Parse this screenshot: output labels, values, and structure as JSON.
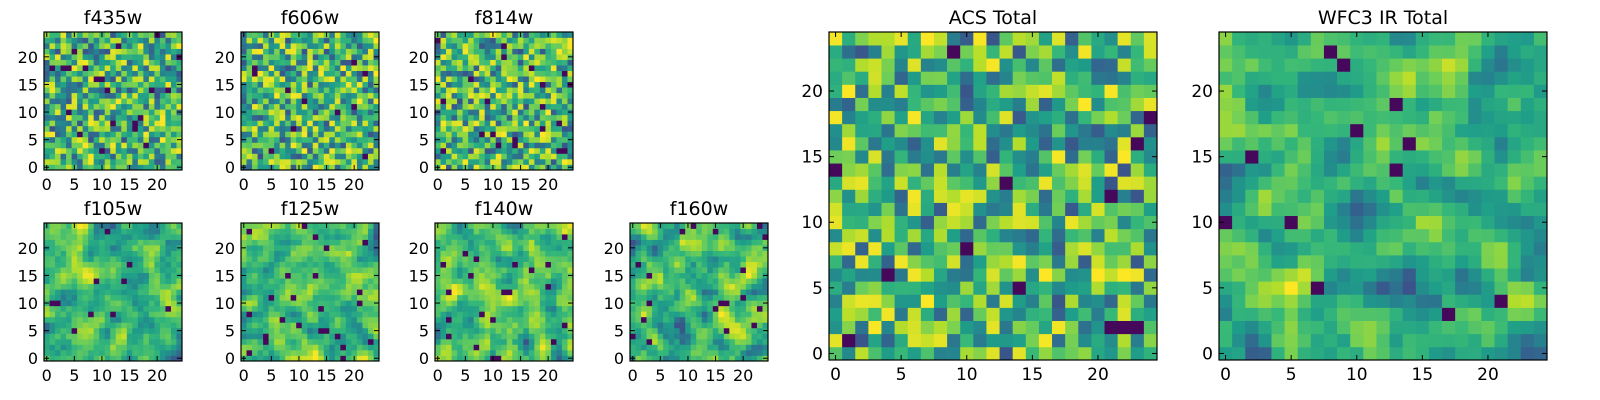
{
  "chart_data": [
    {
      "type": "heatmap",
      "title": "f435w",
      "grid": [
        25,
        25
      ],
      "xlim": [
        0,
        24
      ],
      "ylim": [
        0,
        24
      ],
      "xticks": [
        "0",
        "5",
        "10",
        "15",
        "20"
      ],
      "yticks": [
        "0",
        "5",
        "10",
        "15",
        "20"
      ],
      "seed": 11,
      "noise": "uncorrelated",
      "colormap": "viridis"
    },
    {
      "type": "heatmap",
      "title": "f606w",
      "grid": [
        25,
        25
      ],
      "xlim": [
        0,
        24
      ],
      "ylim": [
        0,
        24
      ],
      "xticks": [
        "0",
        "5",
        "10",
        "15",
        "20"
      ],
      "yticks": [
        "0",
        "5",
        "10",
        "15",
        "20"
      ],
      "seed": 23,
      "noise": "uncorrelated",
      "colormap": "viridis"
    },
    {
      "type": "heatmap",
      "title": "f814w",
      "grid": [
        25,
        25
      ],
      "xlim": [
        0,
        24
      ],
      "ylim": [
        0,
        24
      ],
      "xticks": [
        "0",
        "5",
        "10",
        "15",
        "20"
      ],
      "yticks": [
        "0",
        "5",
        "10",
        "15",
        "20"
      ],
      "seed": 37,
      "noise": "uncorrelated",
      "colormap": "viridis"
    },
    {
      "type": "heatmap",
      "title": "f105w",
      "grid": [
        25,
        25
      ],
      "xlim": [
        0,
        24
      ],
      "ylim": [
        0,
        24
      ],
      "xticks": [
        "0",
        "5",
        "10",
        "15",
        "20"
      ],
      "yticks": [
        "0",
        "5",
        "10",
        "15",
        "20"
      ],
      "seed": 41,
      "noise": "correlated",
      "colormap": "viridis"
    },
    {
      "type": "heatmap",
      "title": "f125w",
      "grid": [
        25,
        25
      ],
      "xlim": [
        0,
        24
      ],
      "ylim": [
        0,
        24
      ],
      "xticks": [
        "0",
        "5",
        "10",
        "15",
        "20"
      ],
      "yticks": [
        "0",
        "5",
        "10",
        "15",
        "20"
      ],
      "seed": 53,
      "noise": "correlated",
      "colormap": "viridis"
    },
    {
      "type": "heatmap",
      "title": "f140w",
      "grid": [
        25,
        25
      ],
      "xlim": [
        0,
        24
      ],
      "ylim": [
        0,
        24
      ],
      "xticks": [
        "0",
        "5",
        "10",
        "15",
        "20"
      ],
      "yticks": [
        "0",
        "5",
        "10",
        "15",
        "20"
      ],
      "seed": 67,
      "noise": "correlated",
      "colormap": "viridis"
    },
    {
      "type": "heatmap",
      "title": "f160w",
      "grid": [
        25,
        25
      ],
      "xlim": [
        0,
        24
      ],
      "ylim": [
        0,
        24
      ],
      "xticks": [
        "0",
        "5",
        "10",
        "15",
        "20"
      ],
      "yticks": [
        "0",
        "5",
        "10",
        "15",
        "20"
      ],
      "seed": 79,
      "noise": "correlated",
      "colormap": "viridis"
    },
    {
      "type": "heatmap",
      "title": "ACS Total",
      "grid": [
        25,
        25
      ],
      "xlim": [
        0,
        24
      ],
      "ylim": [
        0,
        24
      ],
      "xticks": [
        "0",
        "5",
        "10",
        "15",
        "20"
      ],
      "yticks": [
        "0",
        "5",
        "10",
        "15",
        "20"
      ],
      "seed": 97,
      "noise": "uncorrelated",
      "colormap": "viridis"
    },
    {
      "type": "heatmap",
      "title": "WFC3 IR Total",
      "grid": [
        25,
        25
      ],
      "xlim": [
        0,
        24
      ],
      "ylim": [
        0,
        24
      ],
      "xticks": [
        "0",
        "5",
        "10",
        "15",
        "20"
      ],
      "yticks": [
        "0",
        "5",
        "10",
        "15",
        "20"
      ],
      "seed": 131,
      "noise": "correlated",
      "colormap": "viridis"
    }
  ]
}
